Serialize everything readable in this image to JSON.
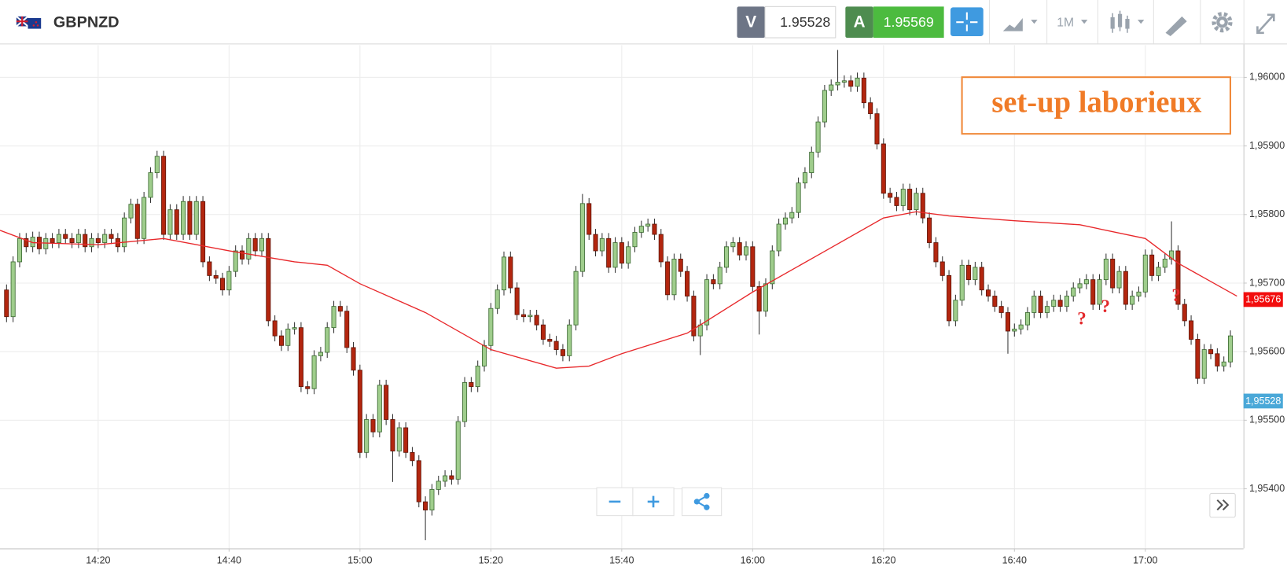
{
  "header": {
    "symbol": "GBPNZD",
    "sell_label": "V",
    "sell_price": 1.95528,
    "buy_label": "A",
    "buy_price": 1.95569,
    "timeframe": "1M"
  },
  "chart_data": {
    "type": "candlestick",
    "up_color": "#9fcd8c",
    "down_color": "#b3260f",
    "x": [
      "14:06",
      "14:07",
      "14:08",
      "14:09",
      "14:10",
      "14:11",
      "14:12",
      "14:13",
      "14:14",
      "14:15",
      "14:16",
      "14:17",
      "14:18",
      "14:19",
      "14:20",
      "14:21",
      "14:22",
      "14:23",
      "14:24",
      "14:25",
      "14:26",
      "14:27",
      "14:28",
      "14:29",
      "14:30",
      "14:31",
      "14:32",
      "14:33",
      "14:34",
      "14:35",
      "14:36",
      "14:37",
      "14:38",
      "14:39",
      "14:40",
      "14:41",
      "14:42",
      "14:43",
      "14:44",
      "14:45",
      "14:46",
      "14:47",
      "14:48",
      "14:49",
      "14:50",
      "14:51",
      "14:52",
      "14:53",
      "14:54",
      "14:55",
      "14:56",
      "14:57",
      "14:58",
      "14:59",
      "15:00",
      "15:01",
      "15:02",
      "15:03",
      "15:04",
      "15:05",
      "15:06",
      "15:07",
      "15:08",
      "15:09",
      "15:10",
      "15:11",
      "15:12",
      "15:13",
      "15:14",
      "15:15",
      "15:16",
      "15:17",
      "15:18",
      "15:19",
      "15:20",
      "15:21",
      "15:22",
      "15:23",
      "15:24",
      "15:25",
      "15:26",
      "15:27",
      "15:28",
      "15:29",
      "15:30",
      "15:31",
      "15:32",
      "15:33",
      "15:34",
      "15:35",
      "15:36",
      "15:37",
      "15:38",
      "15:39",
      "15:40",
      "15:41",
      "15:42",
      "15:43",
      "15:44",
      "15:45",
      "15:46",
      "15:47",
      "15:48",
      "15:49",
      "15:50",
      "15:51",
      "15:52",
      "15:53",
      "15:54",
      "15:55",
      "15:56",
      "15:57",
      "15:58",
      "15:59",
      "16:00",
      "16:01",
      "16:02",
      "16:03",
      "16:04",
      "16:05",
      "16:06",
      "16:07",
      "16:08",
      "16:09",
      "16:10",
      "16:11",
      "16:12",
      "16:13",
      "16:14",
      "16:15",
      "16:16",
      "16:17",
      "16:18",
      "16:19",
      "16:20",
      "16:21",
      "16:22",
      "16:23",
      "16:24",
      "16:25",
      "16:26",
      "16:27",
      "16:28",
      "16:29",
      "16:30",
      "16:31",
      "16:32",
      "16:33",
      "16:34",
      "16:35",
      "16:36",
      "16:37",
      "16:38",
      "16:39",
      "16:40",
      "16:41",
      "16:42",
      "16:43",
      "16:44",
      "16:45",
      "16:46",
      "16:47",
      "16:48",
      "16:49",
      "16:50",
      "16:51",
      "16:52",
      "16:53",
      "16:54",
      "16:55",
      "16:56",
      "16:57",
      "16:58",
      "16:59",
      "17:00",
      "17:01",
      "17:02",
      "17:03",
      "17:04",
      "17:05",
      "17:06",
      "17:07",
      "17:08",
      "17:09",
      "17:10",
      "17:11",
      "17:12",
      "17:13"
    ],
    "open": [
      1.9569,
      1.95651,
      1.95731,
      1.95765,
      1.95753,
      1.95767,
      1.9575,
      1.95765,
      1.95759,
      1.95771,
      1.95765,
      1.95759,
      1.95771,
      1.95753,
      1.95765,
      1.95759,
      1.95771,
      1.95765,
      1.95753,
      1.95795,
      1.95815,
      1.95765,
      1.95825,
      1.95861,
      1.95885,
      1.95771,
      1.95807,
      1.95771,
      1.95819,
      1.95771,
      1.95819,
      1.95731,
      1.95711,
      1.95707,
      1.9569,
      1.95717,
      1.95747,
      1.95735,
      1.95765,
      1.95747,
      1.95765,
      1.95645,
      1.95623,
      1.95609,
      1.95633,
      1.95635,
      1.95549,
      1.95546,
      1.95594,
      1.95599,
      1.95635,
      1.95666,
      1.95659,
      1.95606,
      1.95573,
      1.95453,
      1.95501,
      1.95483,
      1.95551,
      1.95501,
      1.95455,
      1.95489,
      1.95453,
      1.95441,
      1.95381,
      1.95369,
      1.95399,
      1.95411,
      1.95419,
      1.95414,
      1.95498,
      1.95555,
      1.95549,
      1.95579,
      1.95609,
      1.95663,
      1.9569,
      1.95738,
      1.95693,
      1.95654,
      1.95651,
      1.95653,
      1.95639,
      1.95618,
      1.95615,
      1.95603,
      1.95594,
      1.95639,
      1.95717,
      1.95816,
      1.95771,
      1.95747,
      1.95765,
      1.95723,
      1.95759,
      1.95729,
      1.95753,
      1.95774,
      1.95783,
      1.95786,
      1.95771,
      1.95731,
      1.95683,
      1.95735,
      1.95717,
      1.95681,
      1.95623,
      1.95639,
      1.95705,
      1.95699,
      1.95723,
      1.95753,
      1.95759,
      1.95741,
      1.95753,
      1.95695,
      1.95659,
      1.95699,
      1.95747,
      1.95786,
      1.95795,
      1.95803,
      1.95846,
      1.95861,
      1.95891,
      1.95935,
      1.95981,
      1.95989,
      1.95993,
      1.95995,
      1.95987,
      1.95999,
      1.95963,
      1.95947,
      1.95903,
      1.95831,
      1.95825,
      1.95813,
      1.95837,
      1.95807,
      1.95831,
      1.95795,
      1.95759,
      1.95731,
      1.95711,
      1.95645,
      1.95675,
      1.95726,
      1.95705,
      1.95723,
      1.9569,
      1.95681,
      1.95666,
      1.95657,
      1.9563,
      1.95633,
      1.95639,
      1.95657,
      1.95681,
      1.95657,
      1.95666,
      1.95675,
      1.95666,
      1.95681,
      1.95693,
      1.95699,
      1.95705,
      1.95669,
      1.95705,
      1.95735,
      1.95693,
      1.95717,
      1.95669,
      1.95681,
      1.95687,
      1.95741,
      1.95711,
      1.95723,
      1.95735,
      1.95747,
      1.95669,
      1.95645,
      1.95618,
      1.95561,
      1.95603,
      1.95597,
      1.95579,
      1.95585
    ],
    "high": [
      1.95698,
      1.95739,
      1.95773,
      1.95773,
      1.95775,
      1.95775,
      1.95773,
      1.95773,
      1.95779,
      1.95779,
      1.95773,
      1.95779,
      1.95779,
      1.95773,
      1.95773,
      1.95779,
      1.95779,
      1.95773,
      1.95803,
      1.95823,
      1.95823,
      1.95833,
      1.95869,
      1.95893,
      1.95893,
      1.95815,
      1.95815,
      1.95827,
      1.95827,
      1.95827,
      1.95827,
      1.95739,
      1.95719,
      1.95715,
      1.95725,
      1.95755,
      1.95755,
      1.95773,
      1.95773,
      1.95773,
      1.95773,
      1.95653,
      1.95631,
      1.95641,
      1.95643,
      1.95643,
      1.95557,
      1.95602,
      1.95607,
      1.95643,
      1.95674,
      1.95674,
      1.95667,
      1.95614,
      1.95581,
      1.95509,
      1.95509,
      1.95559,
      1.95559,
      1.95509,
      1.95497,
      1.95497,
      1.95461,
      1.95449,
      1.95389,
      1.95407,
      1.95419,
      1.95427,
      1.95427,
      1.95506,
      1.95563,
      1.95563,
      1.95587,
      1.95617,
      1.95671,
      1.95698,
      1.95746,
      1.95746,
      1.95701,
      1.95662,
      1.95661,
      1.95661,
      1.95647,
      1.95626,
      1.95623,
      1.95611,
      1.95647,
      1.95725,
      1.9583,
      1.95824,
      1.95779,
      1.95773,
      1.95773,
      1.95767,
      1.95767,
      1.95761,
      1.95782,
      1.95791,
      1.95794,
      1.95794,
      1.95779,
      1.95739,
      1.95743,
      1.95743,
      1.95725,
      1.95689,
      1.95647,
      1.95713,
      1.95713,
      1.95731,
      1.95761,
      1.95767,
      1.95767,
      1.95761,
      1.95761,
      1.95703,
      1.95707,
      1.95755,
      1.95794,
      1.95803,
      1.95811,
      1.95854,
      1.95869,
      1.95899,
      1.95943,
      1.95989,
      1.95997,
      1.9604,
      1.96003,
      1.96003,
      1.96007,
      1.96007,
      1.95971,
      1.95955,
      1.95911,
      1.95839,
      1.95833,
      1.95845,
      1.95845,
      1.95839,
      1.95839,
      1.95803,
      1.95767,
      1.95739,
      1.95719,
      1.95683,
      1.95734,
      1.95734,
      1.95731,
      1.95731,
      1.95698,
      1.95689,
      1.95674,
      1.95665,
      1.95641,
      1.95647,
      1.95665,
      1.95689,
      1.95689,
      1.95674,
      1.95683,
      1.95683,
      1.95689,
      1.95701,
      1.95707,
      1.95713,
      1.95713,
      1.95713,
      1.95743,
      1.95743,
      1.95725,
      1.95725,
      1.95689,
      1.95695,
      1.95749,
      1.95749,
      1.95731,
      1.95743,
      1.9579,
      1.95755,
      1.95677,
      1.95653,
      1.95626,
      1.95611,
      1.95611,
      1.95605,
      1.95593,
      1.95631
    ],
    "low": [
      1.95643,
      1.95643,
      1.95723,
      1.95745,
      1.95745,
      1.95742,
      1.95742,
      1.95751,
      1.95751,
      1.95757,
      1.95751,
      1.95751,
      1.95745,
      1.95745,
      1.95751,
      1.95751,
      1.95757,
      1.95745,
      1.95745,
      1.95787,
      1.95757,
      1.95757,
      1.95817,
      1.95853,
      1.95763,
      1.95763,
      1.95763,
      1.95763,
      1.95763,
      1.95763,
      1.95723,
      1.95703,
      1.95699,
      1.95682,
      1.95682,
      1.95709,
      1.95727,
      1.95727,
      1.95739,
      1.95739,
      1.95637,
      1.95615,
      1.95601,
      1.95601,
      1.95625,
      1.95541,
      1.95538,
      1.95538,
      1.95586,
      1.95591,
      1.95627,
      1.95651,
      1.95598,
      1.95565,
      1.95445,
      1.95445,
      1.95475,
      1.95475,
      1.95493,
      1.9541,
      1.95447,
      1.95445,
      1.95433,
      1.95373,
      1.95325,
      1.95361,
      1.95391,
      1.95403,
      1.95406,
      1.95406,
      1.9549,
      1.95541,
      1.95541,
      1.95571,
      1.95601,
      1.95655,
      1.95682,
      1.95685,
      1.95646,
      1.95643,
      1.95643,
      1.95631,
      1.9561,
      1.95607,
      1.95595,
      1.95586,
      1.95586,
      1.95631,
      1.95709,
      1.95763,
      1.95739,
      1.95739,
      1.95715,
      1.95715,
      1.95721,
      1.95721,
      1.95745,
      1.95766,
      1.95775,
      1.95763,
      1.95723,
      1.95675,
      1.95675,
      1.95709,
      1.95673,
      1.95615,
      1.95595,
      1.95631,
      1.95691,
      1.95691,
      1.95715,
      1.95745,
      1.95733,
      1.95733,
      1.95687,
      1.95625,
      1.95651,
      1.95691,
      1.95739,
      1.95778,
      1.95787,
      1.95795,
      1.95838,
      1.95853,
      1.95883,
      1.95927,
      1.95973,
      1.95981,
      1.95985,
      1.95979,
      1.95979,
      1.95955,
      1.95939,
      1.95895,
      1.95823,
      1.95817,
      1.95805,
      1.95805,
      1.95799,
      1.95799,
      1.95787,
      1.95751,
      1.95723,
      1.95703,
      1.95637,
      1.95637,
      1.95667,
      1.95697,
      1.95697,
      1.95682,
      1.95673,
      1.95658,
      1.95649,
      1.95597,
      1.95622,
      1.95625,
      1.95631,
      1.95649,
      1.95649,
      1.95649,
      1.95658,
      1.95658,
      1.95658,
      1.95673,
      1.95685,
      1.95691,
      1.95661,
      1.95661,
      1.95697,
      1.95685,
      1.95685,
      1.95661,
      1.95661,
      1.95673,
      1.95679,
      1.95703,
      1.95703,
      1.95715,
      1.95727,
      1.95661,
      1.95637,
      1.9561,
      1.95553,
      1.95553,
      1.95589,
      1.95571,
      1.95571,
      1.95577
    ],
    "close": [
      1.95651,
      1.95731,
      1.95765,
      1.95753,
      1.95767,
      1.9575,
      1.95765,
      1.95759,
      1.95771,
      1.95765,
      1.95759,
      1.95771,
      1.95753,
      1.95765,
      1.95759,
      1.95771,
      1.95765,
      1.95753,
      1.95795,
      1.95815,
      1.95765,
      1.95825,
      1.95861,
      1.95885,
      1.95771,
      1.95807,
      1.95771,
      1.95819,
      1.95771,
      1.95819,
      1.95731,
      1.95711,
      1.95707,
      1.9569,
      1.95717,
      1.95747,
      1.95735,
      1.95765,
      1.95747,
      1.95765,
      1.95645,
      1.95623,
      1.95609,
      1.95633,
      1.95635,
      1.95549,
      1.95546,
      1.95594,
      1.95599,
      1.95635,
      1.95666,
      1.95659,
      1.95606,
      1.95573,
      1.95453,
      1.95501,
      1.95483,
      1.95551,
      1.95501,
      1.95455,
      1.95489,
      1.95453,
      1.95441,
      1.95381,
      1.95369,
      1.95399,
      1.95411,
      1.95419,
      1.95414,
      1.95498,
      1.95555,
      1.95549,
      1.95579,
      1.95609,
      1.95663,
      1.9569,
      1.95738,
      1.95693,
      1.95654,
      1.95651,
      1.95653,
      1.95639,
      1.95618,
      1.95615,
      1.95603,
      1.95594,
      1.95639,
      1.95717,
      1.95816,
      1.95771,
      1.95747,
      1.95765,
      1.95723,
      1.95759,
      1.95729,
      1.95753,
      1.95774,
      1.95783,
      1.95786,
      1.95771,
      1.95731,
      1.95683,
      1.95735,
      1.95717,
      1.95681,
      1.95623,
      1.95639,
      1.95705,
      1.95699,
      1.95723,
      1.95753,
      1.95759,
      1.95741,
      1.95753,
      1.95695,
      1.95659,
      1.95699,
      1.95747,
      1.95786,
      1.95795,
      1.95803,
      1.95846,
      1.95861,
      1.95891,
      1.95935,
      1.95981,
      1.95989,
      1.95993,
      1.95995,
      1.95987,
      1.95999,
      1.95963,
      1.95947,
      1.95903,
      1.95831,
      1.95825,
      1.95813,
      1.95837,
      1.95807,
      1.95831,
      1.95795,
      1.95759,
      1.95731,
      1.95711,
      1.95645,
      1.95675,
      1.95726,
      1.95705,
      1.95723,
      1.9569,
      1.95681,
      1.95666,
      1.95657,
      1.9563,
      1.95633,
      1.95639,
      1.95657,
      1.95681,
      1.95657,
      1.95666,
      1.95675,
      1.95666,
      1.95681,
      1.95693,
      1.95699,
      1.95705,
      1.95669,
      1.95705,
      1.95735,
      1.95693,
      1.95717,
      1.95669,
      1.95681,
      1.95687,
      1.95741,
      1.95711,
      1.95723,
      1.95735,
      1.95747,
      1.95669,
      1.95645,
      1.95618,
      1.95561,
      1.95603,
      1.95597,
      1.95579,
      1.95585,
      1.95623
    ],
    "moving_average": {
      "color": "#e8282b",
      "x": [
        "14:05",
        "14:10",
        "14:20",
        "14:30",
        "14:40",
        "14:50",
        "14:55",
        "15:00",
        "15:10",
        "15:20",
        "15:30",
        "15:35",
        "15:40",
        "15:50",
        "16:00",
        "16:10",
        "16:20",
        "16:25",
        "16:30",
        "16:40",
        "16:50",
        "17:00",
        "17:05",
        "17:14"
      ],
      "values": [
        1.95777,
        1.95759,
        1.95756,
        1.95765,
        1.95747,
        1.95731,
        1.95726,
        1.95699,
        1.95657,
        1.95603,
        1.95576,
        1.95579,
        1.95597,
        1.95627,
        1.95687,
        1.95741,
        1.95795,
        1.95804,
        1.95798,
        1.95791,
        1.95785,
        1.95765,
        1.95729,
        1.95681
      ]
    },
    "xlim": [
      "14:05",
      "17:15"
    ],
    "xticks": [
      "14:20",
      "14:40",
      "15:00",
      "15:20",
      "15:40",
      "16:00",
      "16:20",
      "16:40",
      "17:00"
    ],
    "ylim": [
      1.95313,
      1.96047
    ],
    "yticks": [
      {
        "value": 1.954,
        "label": "1,95400"
      },
      {
        "value": 1.955,
        "label": "1,95500"
      },
      {
        "value": 1.956,
        "label": "1,95600"
      },
      {
        "value": 1.957,
        "label": "1,95700"
      },
      {
        "value": 1.958,
        "label": "1,95800"
      },
      {
        "value": 1.959,
        "label": "1,95900"
      },
      {
        "value": 1.96,
        "label": "1,96000"
      }
    ],
    "grid": true,
    "price_tags": [
      {
        "value": 1.95676,
        "label": "1,95676",
        "color": "#f20d0d"
      },
      {
        "value": 1.95528,
        "label": "1,95528",
        "color": "#4aa8d8"
      }
    ],
    "annotation": "set-up laborieux",
    "question_marks": [
      "?",
      "?",
      "?"
    ]
  }
}
